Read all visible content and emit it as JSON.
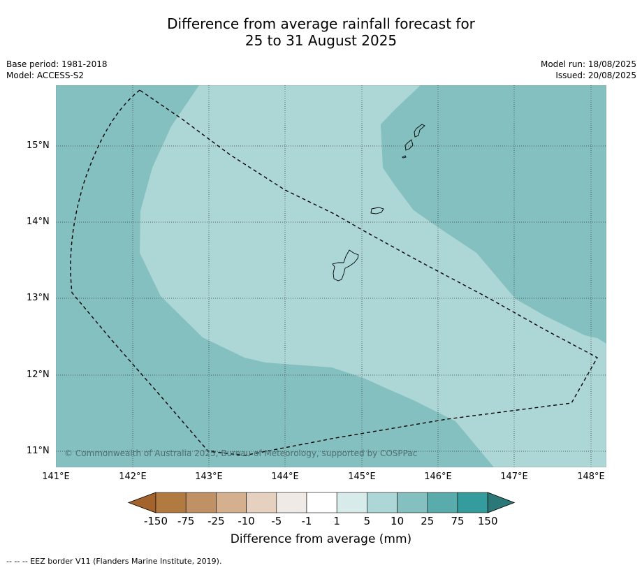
{
  "title": {
    "line1": "Difference from average rainfall forecast for",
    "line2": "25 to 31 August 2025"
  },
  "meta": {
    "base_period": "Base period: 1981-2018",
    "model": "Model: ACCESS-S2",
    "model_run": "Model run: 18/08/2025",
    "issued": "Issued: 20/08/2025"
  },
  "map": {
    "lat_labels": [
      "15°N",
      "14°N",
      "13°N",
      "12°N",
      "11°N"
    ],
    "lon_labels": [
      "141°E",
      "142°E",
      "143°E",
      "144°E",
      "145°E",
      "146°E",
      "147°E",
      "148°E"
    ],
    "copyright": "© Commonwealth of Australia 2025, Bureau of Meteorology, supported by COSPPac",
    "colors": {
      "band_10_25": "#84c0c0",
      "band_5_10": "#add6d6",
      "border": "#000000"
    }
  },
  "colorbar": {
    "title": "Difference from average (mm)",
    "tick_labels": [
      "-150",
      "-75",
      "-25",
      "-10",
      "-5",
      "-1",
      "1",
      "5",
      "10",
      "25",
      "75",
      "150"
    ],
    "colors": [
      "#a4622c",
      "#b17a40",
      "#c09165",
      "#d4b08f",
      "#e6d0bf",
      "#efeae6",
      "#ffffff",
      "#d6ebea",
      "#add6d6",
      "#84c0c0",
      "#5aacac",
      "#349c9c",
      "#2b7878"
    ]
  },
  "footnote": "--  --  -- EEZ border V11 (Flanders Marine Institute, 2019)."
}
